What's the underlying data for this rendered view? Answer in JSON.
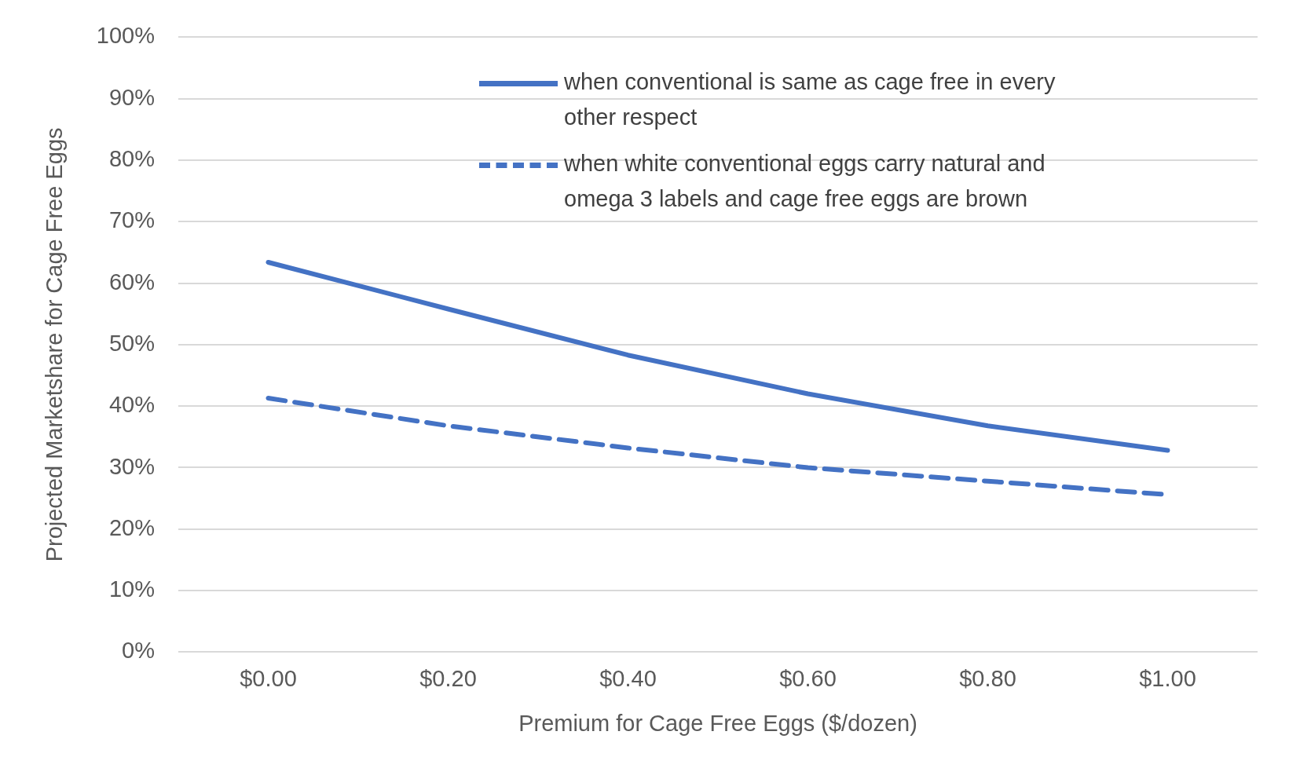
{
  "chart_data": {
    "type": "line",
    "xlabel": "Premium for Cage Free Eggs ($/dozen)",
    "ylabel": "Projected Marketshare for Cage Free Eggs",
    "categories": [
      "$0.00",
      "$0.20",
      "$0.40",
      "$0.60",
      "$0.80",
      "$1.00"
    ],
    "series": [
      {
        "name": "when conventional is same as cage free in every other respect",
        "color": "#4472c4",
        "line_style": "solid",
        "values": [
          63.4,
          55.8,
          48.3,
          42.0,
          36.8,
          32.8
        ]
      },
      {
        "name": "when white conventional eggs carry natural and omega 3 labels and cage free eggs are brown",
        "color": "#4472c4",
        "line_style": "dashed",
        "values": [
          41.3,
          36.8,
          33.2,
          30.0,
          27.8,
          25.6
        ]
      }
    ],
    "ylim": [
      0,
      100
    ],
    "yticks": [
      {
        "value": 0,
        "label": "0%"
      },
      {
        "value": 10,
        "label": "10%"
      },
      {
        "value": 20,
        "label": "20%"
      },
      {
        "value": 30,
        "label": "30%"
      },
      {
        "value": 40,
        "label": "40%"
      },
      {
        "value": 50,
        "label": "50%"
      },
      {
        "value": 60,
        "label": "60%"
      },
      {
        "value": 70,
        "label": "70%"
      },
      {
        "value": 80,
        "label": "80%"
      },
      {
        "value": 90,
        "label": "90%"
      },
      {
        "value": 100,
        "label": "100%"
      }
    ],
    "grid": "y",
    "legend": "top",
    "marker": "none"
  }
}
